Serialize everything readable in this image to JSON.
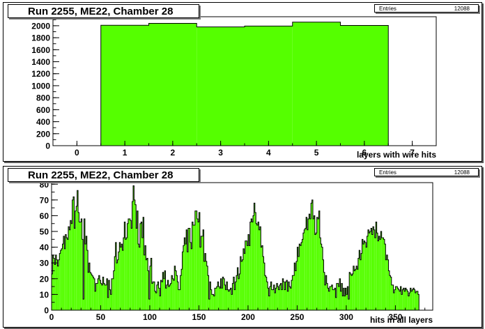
{
  "panels": [
    {
      "title": "Run 2255, ME22, Chamber 28",
      "stats": {
        "label": "Entries",
        "value": "12088"
      }
    },
    {
      "title": "Run 2255, ME22, Chamber 28",
      "stats": {
        "label": "Entries",
        "value": "12088"
      }
    }
  ],
  "colors": {
    "fill": "#55ff00",
    "line": "#000000",
    "frame": "#000000"
  },
  "chart_data": [
    {
      "type": "bar",
      "title": "Run 2255, ME22, Chamber 28",
      "xlabel": "layers with wire hits",
      "ylabel": "",
      "xlim": [
        -0.5,
        7.5
      ],
      "ylim": [
        0,
        2150
      ],
      "x_ticks": [
        0,
        1,
        2,
        3,
        4,
        5,
        6,
        7
      ],
      "y_ticks": [
        0,
        200,
        400,
        600,
        800,
        1000,
        1200,
        1400,
        1600,
        1800,
        2000
      ],
      "categories": [
        1,
        2,
        3,
        4,
        5,
        6
      ],
      "values": [
        2008,
        2040,
        1980,
        1995,
        2060,
        2005
      ],
      "bin_width": 1,
      "stats": {
        "Entries": 12088
      }
    },
    {
      "type": "bar",
      "title": "Run 2255, ME22, Chamber 28",
      "xlabel": "hits in all layers",
      "ylabel": "",
      "xlim": [
        0,
        388
      ],
      "ylim": [
        0,
        81
      ],
      "x_ticks": [
        0,
        50,
        100,
        150,
        200,
        250,
        300,
        350
      ],
      "y_ticks": [
        0,
        10,
        20,
        30,
        40,
        50,
        60,
        70,
        80
      ],
      "bin_width": 1,
      "values": [
        23,
        35,
        33,
        29,
        35,
        32,
        28,
        32,
        36,
        38,
        39,
        42,
        47,
        39,
        48,
        46,
        45,
        53,
        51,
        57,
        55,
        70,
        72,
        52,
        63,
        66,
        76,
        62,
        56,
        56,
        58,
        45,
        7,
        58,
        42,
        47,
        38,
        24,
        30,
        24,
        23,
        22,
        21,
        20,
        12,
        17,
        17,
        20,
        22,
        19,
        17,
        16,
        21,
        17,
        16,
        16,
        20,
        8,
        19,
        13,
        10,
        20,
        20,
        25,
        34,
        43,
        30,
        32,
        37,
        43,
        40,
        42,
        38,
        46,
        56,
        45,
        46,
        55,
        58,
        58,
        57,
        52,
        69,
        79,
        70,
        67,
        52,
        63,
        42,
        40,
        55,
        56,
        46,
        59,
        35,
        41,
        32,
        33,
        25,
        7,
        28,
        33,
        17,
        18,
        18,
        12,
        11,
        16,
        18,
        14,
        9,
        19,
        18,
        24,
        20,
        25,
        14,
        16,
        19,
        15,
        16,
        17,
        22,
        20,
        19,
        28,
        25,
        22,
        18,
        13,
        13,
        22,
        26,
        37,
        41,
        46,
        42,
        51,
        37,
        52,
        52,
        43,
        39,
        56,
        54,
        54,
        63,
        63,
        58,
        56,
        62,
        40,
        47,
        47,
        51,
        31,
        36,
        31,
        28,
        22,
        7,
        18,
        13,
        10,
        10,
        9,
        14,
        14,
        15,
        18,
        15,
        14,
        20,
        14,
        21,
        20,
        16,
        13,
        18,
        13,
        12,
        13,
        14,
        10,
        17,
        21,
        13,
        18,
        22,
        27,
        20,
        23,
        34,
        31,
        32,
        39,
        36,
        44,
        44,
        41,
        48,
        41,
        56,
        58,
        56,
        60,
        68,
        62,
        55,
        54,
        56,
        51,
        53,
        40,
        41,
        34,
        30,
        22,
        21,
        18,
        14,
        9,
        15,
        18,
        13,
        13,
        16,
        11,
        14,
        17,
        15,
        13,
        16,
        17,
        13,
        20,
        18,
        13,
        18,
        19,
        12,
        18,
        15,
        14,
        19,
        22,
        22,
        30,
        25,
        31,
        40,
        34,
        42,
        41,
        43,
        45,
        49,
        51,
        52,
        59,
        51,
        58,
        61,
        58,
        68,
        70,
        58,
        60,
        48,
        49,
        59,
        58,
        63,
        46,
        42,
        40,
        32,
        24,
        16,
        22,
        17,
        14,
        12,
        15,
        15,
        16,
        13,
        13,
        14,
        8,
        17,
        17,
        15,
        20,
        12,
        17,
        9,
        14,
        9,
        14,
        10,
        15,
        7,
        24,
        23,
        22,
        23,
        28,
        25,
        26,
        28,
        26,
        33,
        38,
        32,
        36,
        45,
        42,
        44,
        43,
        40,
        47,
        51,
        49,
        50,
        52,
        48,
        53,
        51,
        46,
        56,
        49,
        44,
        47,
        45,
        50,
        46,
        46,
        45,
        42,
        32,
        35,
        32,
        25,
        22,
        21,
        16,
        16,
        11,
        13,
        15,
        15,
        14,
        13,
        12,
        15,
        10,
        13,
        14,
        12,
        14,
        13,
        12,
        9,
        11,
        14,
        12,
        13,
        14,
        13,
        11,
        12,
        12,
        10
      ],
      "stats": {
        "Entries": 12088
      }
    }
  ]
}
